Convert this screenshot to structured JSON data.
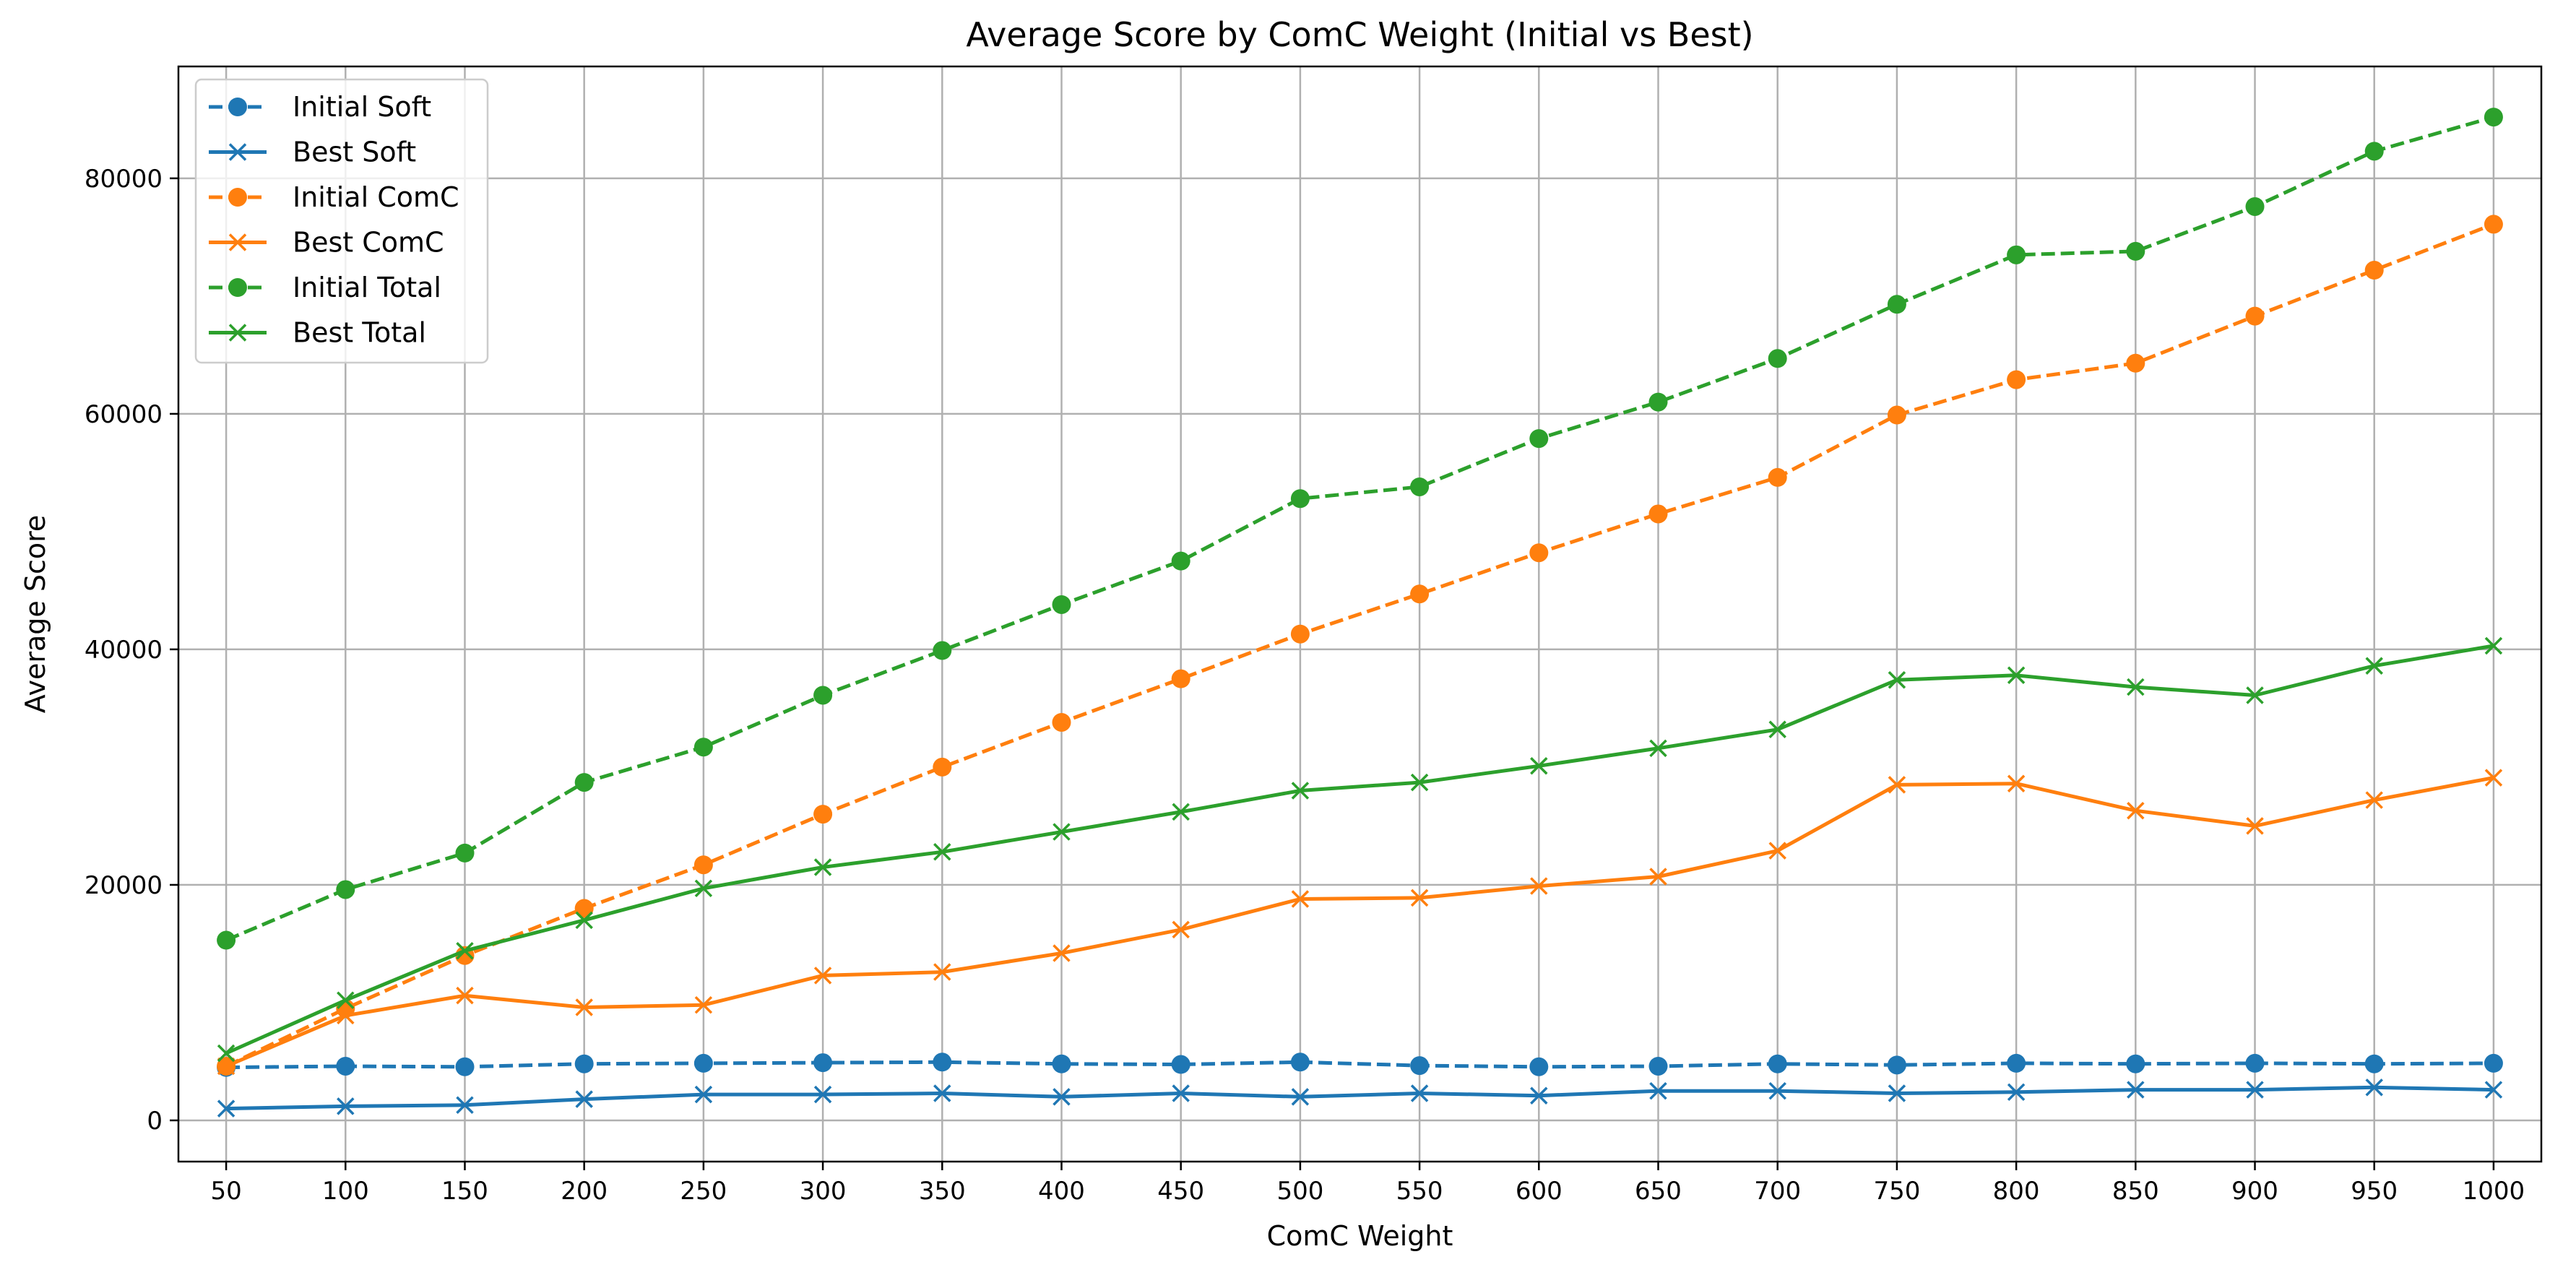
{
  "chart_data": {
    "type": "line",
    "title": "Average Score by ComC Weight (Initial vs Best)",
    "xlabel": "ComC Weight",
    "ylabel": "Average Score",
    "x": [
      50,
      100,
      150,
      200,
      250,
      300,
      350,
      400,
      450,
      500,
      550,
      600,
      650,
      700,
      750,
      800,
      850,
      900,
      950,
      1000
    ],
    "xlim": [
      30,
      1020
    ],
    "ylim": [
      -3500,
      89500
    ],
    "yticks": [
      0,
      20000,
      40000,
      60000,
      80000
    ],
    "grid": true,
    "legend_position": "top-left",
    "series": [
      {
        "name": "Initial Soft",
        "color": "#1f77b4",
        "linestyle": "dashed",
        "marker": "circle",
        "values": [
          4500,
          4600,
          4550,
          4800,
          4850,
          4900,
          4950,
          4800,
          4750,
          4950,
          4650,
          4550,
          4600,
          4800,
          4700,
          4850,
          4800,
          4850,
          4800,
          4850
        ]
      },
      {
        "name": "Best Soft",
        "color": "#1f77b4",
        "linestyle": "solid",
        "marker": "x",
        "values": [
          1000,
          1200,
          1300,
          1800,
          2200,
          2200,
          2300,
          2000,
          2300,
          2000,
          2300,
          2100,
          2500,
          2500,
          2300,
          2400,
          2600,
          2600,
          2800,
          2600
        ]
      },
      {
        "name": "Initial ComC",
        "color": "#ff7f0e",
        "linestyle": "dashed",
        "marker": "circle",
        "values": [
          4600,
          9500,
          14000,
          18000,
          21700,
          26000,
          30000,
          33800,
          37500,
          41300,
          44700,
          48200,
          51500,
          54600,
          59900,
          62900,
          64300,
          68300,
          72200,
          76100
        ]
      },
      {
        "name": "Best ComC",
        "color": "#ff7f0e",
        "linestyle": "solid",
        "marker": "x",
        "values": [
          4600,
          8900,
          10600,
          9600,
          9800,
          12300,
          12600,
          14200,
          16200,
          18800,
          18900,
          19900,
          20700,
          22900,
          28500,
          28600,
          26300,
          25000,
          27200,
          29100
        ]
      },
      {
        "name": "Initial Total",
        "color": "#2ca02c",
        "linestyle": "dashed",
        "marker": "circle",
        "values": [
          15300,
          19600,
          22700,
          28700,
          31700,
          36100,
          39900,
          43800,
          47500,
          52800,
          53800,
          57900,
          61000,
          64700,
          69300,
          73500,
          73800,
          77600,
          82300,
          85200
        ]
      },
      {
        "name": "Best Total",
        "color": "#2ca02c",
        "linestyle": "solid",
        "marker": "x",
        "values": [
          5700,
          10200,
          14400,
          17000,
          19700,
          21500,
          22800,
          24500,
          26200,
          28000,
          28700,
          30100,
          31600,
          33200,
          37400,
          37800,
          36800,
          36100,
          38600,
          40300
        ]
      }
    ]
  }
}
